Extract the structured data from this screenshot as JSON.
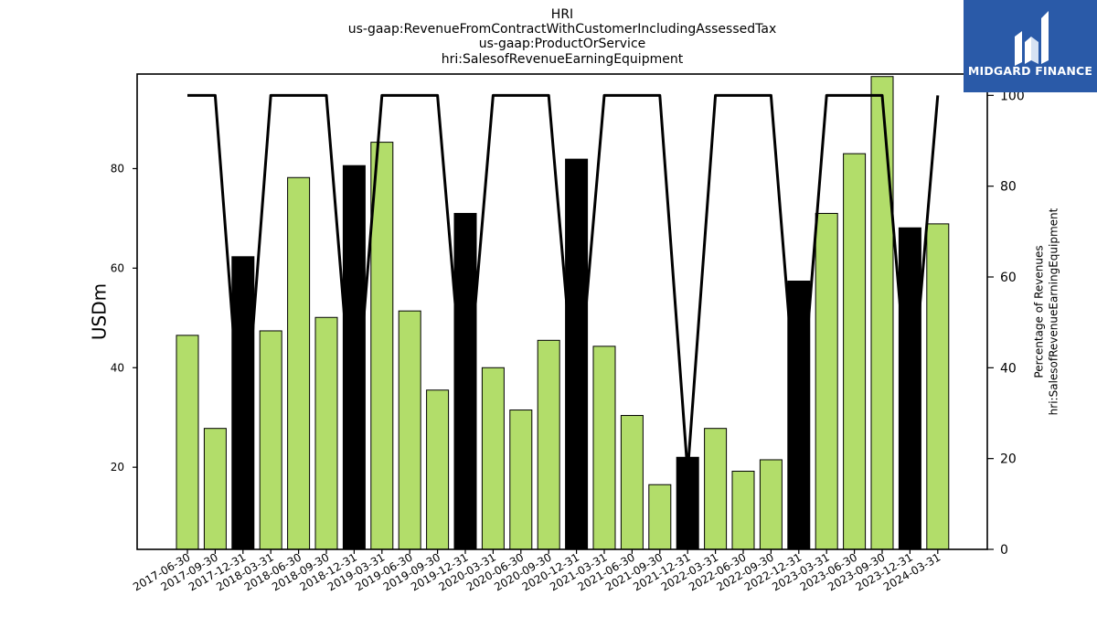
{
  "header": {
    "title_lines": [
      "HRI",
      "us-gaap:RevenueFromContractWithCustomerIncludingAssessedTax",
      "us-gaap:ProductOrService",
      "hri:SalesofRevenueEarningEquipment"
    ]
  },
  "logo": {
    "text": "MIDGARD FINANCE",
    "icon": "midgard-logo-icon",
    "background": "#2a5aa8"
  },
  "chart_data": {
    "type": "bar",
    "categories": [
      "2017-06-30",
      "2017-09-30",
      "2017-12-31",
      "2018-03-31",
      "2018-06-30",
      "2018-09-30",
      "2018-12-31",
      "2019-03-31",
      "2019-06-30",
      "2019-09-30",
      "2019-12-31",
      "2020-03-31",
      "2020-06-30",
      "2020-09-30",
      "2020-12-31",
      "2021-03-31",
      "2021-06-30",
      "2021-09-30",
      "2021-12-31",
      "2022-03-31",
      "2022-06-30",
      "2022-09-30",
      "2022-12-31",
      "2023-03-31",
      "2023-06-30",
      "2023-09-30",
      "2023-12-31",
      "2024-03-31"
    ],
    "values": [
      46.5,
      27.8,
      62.3,
      47.4,
      78.2,
      50.1,
      80.6,
      85.3,
      51.4,
      35.5,
      71.0,
      40.0,
      31.5,
      45.5,
      81.9,
      44.3,
      30.4,
      16.5,
      22.0,
      27.8,
      19.2,
      21.5,
      57.4,
      71.0,
      83.0,
      98.5,
      68.1,
      68.9
    ],
    "bar_colors": [
      "#b2dd6a",
      "#b2dd6a",
      "#000000",
      "#b2dd6a",
      "#b2dd6a",
      "#b2dd6a",
      "#000000",
      "#b2dd6a",
      "#b2dd6a",
      "#b2dd6a",
      "#000000",
      "#b2dd6a",
      "#b2dd6a",
      "#b2dd6a",
      "#000000",
      "#b2dd6a",
      "#b2dd6a",
      "#b2dd6a",
      "#000000",
      "#b2dd6a",
      "#b2dd6a",
      "#b2dd6a",
      "#000000",
      "#b2dd6a",
      "#b2dd6a",
      "#b2dd6a",
      "#000000",
      "#b2dd6a"
    ],
    "colors": {
      "quarter_bar": "#b2dd6a",
      "annual_bar": "#000000",
      "line": "#000000"
    },
    "percentage_line": [
      100,
      100,
      20,
      100,
      100,
      100,
      25,
      100,
      100,
      100,
      28,
      100,
      100,
      100,
      29,
      100,
      100,
      100,
      17,
      100,
      100,
      100,
      24,
      100,
      100,
      100,
      28,
      100
    ],
    "ylabel": "USDm",
    "ylim": [
      3.5,
      99
    ],
    "yticks": [
      20,
      40,
      60,
      80
    ],
    "y2label_lines": [
      "Percentage of Revenues",
      "hri:SalesofRevenueEarningEquipment"
    ],
    "y2lim": [
      0,
      104.7
    ],
    "y2ticks": [
      0,
      20,
      40,
      60,
      80,
      100
    ],
    "grid": false
  }
}
